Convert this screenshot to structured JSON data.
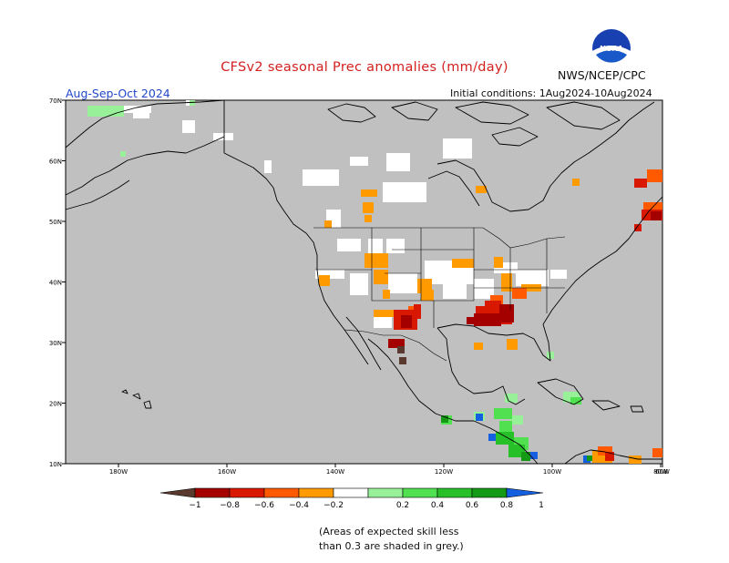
{
  "header": {
    "title": "CFSv2 seasonal Prec anomalies (mm/day)",
    "agency": "NWS/NCEP/CPC",
    "logo_text": "NOAA",
    "season": "Aug-Sep-Oct 2024",
    "initial_conditions": "Initial conditions: 1Aug2024-10Aug2024"
  },
  "map": {
    "region": "North America",
    "mask_color": "#c0c0c0",
    "lat_labels": [
      "70N",
      "60N",
      "50N",
      "40N",
      "30N",
      "20N",
      "10N"
    ],
    "lon_labels": [
      "180W",
      "160W",
      "140W",
      "120W",
      "100W",
      "80W",
      "60W"
    ]
  },
  "colorbar": {
    "labels": [
      "−1",
      "−0.8",
      "−0.6",
      "−0.4",
      "−0.2",
      "0.2",
      "0.4",
      "0.6",
      "0.8",
      "1"
    ],
    "colors": [
      "#5a3a2e",
      "#a40000",
      "#d81800",
      "#ff5a00",
      "#ff9a00",
      "#ffffff",
      "#98f098",
      "#50e050",
      "#28c028",
      "#149a14",
      "#1460e0"
    ]
  },
  "footnote": {
    "line1": "(Areas of expected skill less",
    "line2": "than 0.3 are shaded in grey.)"
  },
  "anomaly_colors": {
    "white": "#ffffff",
    "orange": "#ff9a00",
    "redorange": "#ff5a00",
    "red": "#d81800",
    "darkred": "#a40000",
    "brown": "#5a3a2e",
    "lgreen": "#98f098",
    "green": "#50e050",
    "mgreen": "#28c028",
    "dgreen": "#149a14",
    "blue": "#1460e0"
  }
}
